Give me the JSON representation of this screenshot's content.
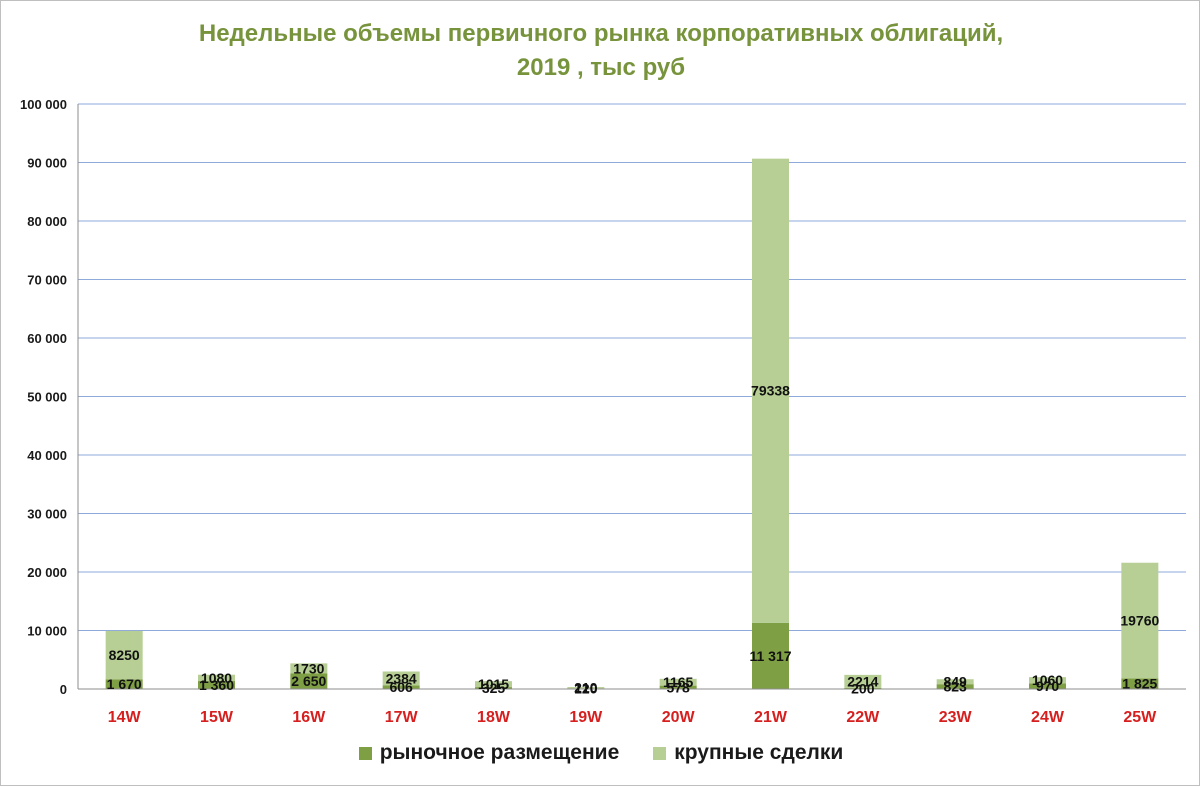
{
  "chart_data": {
    "type": "bar",
    "stacked": true,
    "title_line1": "Недельные объемы первичного рынка корпоративных облигаций,",
    "title_line2": "2019 , тыс руб",
    "categories": [
      "14W",
      "15W",
      "16W",
      "17W",
      "18W",
      "19W",
      "20W",
      "21W",
      "22W",
      "23W",
      "24W",
      "25W"
    ],
    "series": [
      {
        "name": "рыночное размещение",
        "color": "#7f9f45",
        "values": [
          1670,
          1360,
          2650,
          606,
          325,
          120,
          578,
          11317,
          200,
          823,
          970,
          1825
        ],
        "labels": [
          "1 670",
          "1 360",
          "2 650",
          "606",
          "325",
          "120",
          "578",
          "11 317",
          "200",
          "823",
          "970",
          "1 825"
        ]
      },
      {
        "name": "крупные сделки",
        "color": "#b7cf94",
        "values": [
          8250,
          1080,
          1730,
          2384,
          1015,
          210,
          1165,
          79338,
          2214,
          849,
          1060,
          19760
        ],
        "labels": [
          "8250",
          "1080",
          "1730",
          "2384",
          "1015",
          "210",
          "1165",
          "79338",
          "2214",
          "849",
          "1060",
          "19760"
        ]
      }
    ],
    "y_ticks": [
      0,
      10000,
      20000,
      30000,
      40000,
      50000,
      60000,
      70000,
      80000,
      90000,
      100000
    ],
    "y_tick_labels": [
      "0",
      "10 000",
      "20 000",
      "30 000",
      "40 000",
      "50 000",
      "60 000",
      "70 000",
      "80 000",
      "90 000",
      "100 000"
    ],
    "ylim": [
      0,
      100000
    ],
    "grid": true,
    "legend_position": "bottom"
  }
}
